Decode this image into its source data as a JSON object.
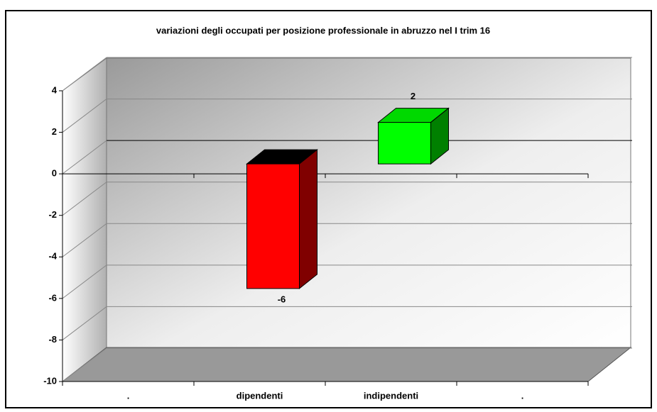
{
  "chart_data": {
    "type": "bar3d",
    "title": "variazioni degli occupati per posizione professionale in abruzzo nel I trim 16",
    "categories": [
      ".",
      "dipendenti",
      "indipendenti",
      "."
    ],
    "values": [
      null,
      -6,
      2,
      null
    ],
    "colors": [
      null,
      "#ff0000",
      "#00ff00",
      null
    ],
    "ylim": [
      -10,
      4
    ],
    "yticks": [
      -10,
      -8,
      -6,
      -4,
      -2,
      0,
      2,
      4
    ],
    "grid": true
  }
}
